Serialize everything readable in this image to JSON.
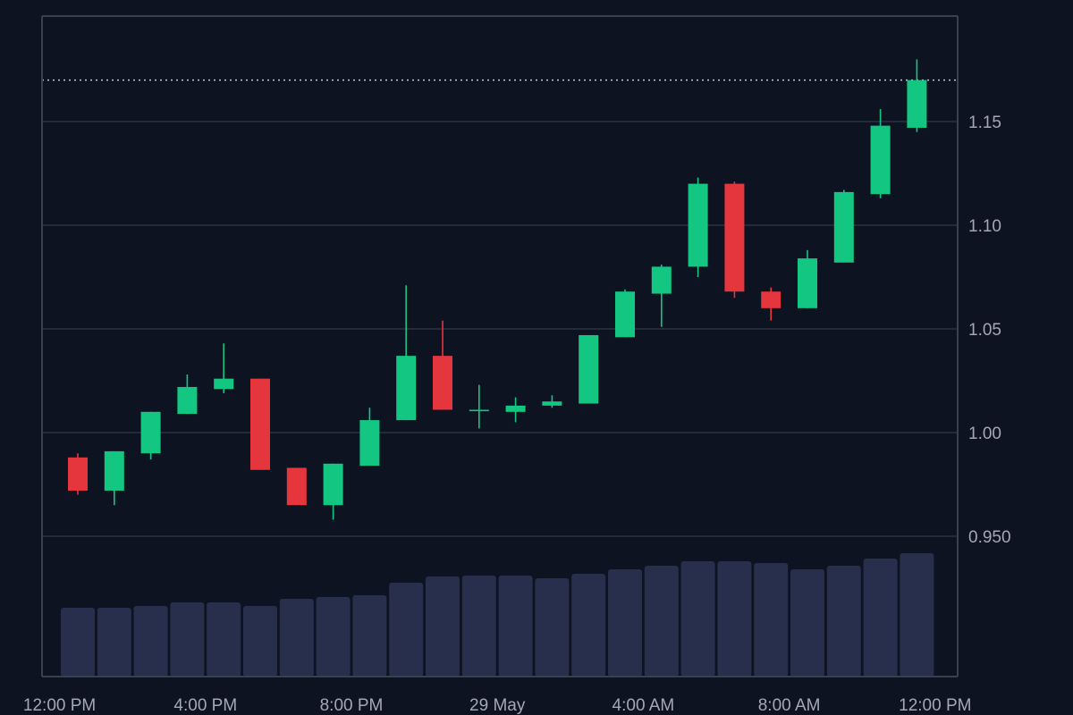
{
  "chart_data": {
    "type": "candlestick",
    "title": "",
    "xlabel": "",
    "ylabel": "",
    "ylim": [
      0.95,
      1.2
    ],
    "y_ticks": [
      {
        "value": 1.15,
        "label": "1.15"
      },
      {
        "value": 1.1,
        "label": "1.10"
      },
      {
        "value": 1.05,
        "label": "1.05"
      },
      {
        "value": 1.0,
        "label": "1.00"
      },
      {
        "value": 0.95,
        "label": "0.950"
      }
    ],
    "x_ticks": [
      {
        "index": -0.5,
        "label": "12:00 PM"
      },
      {
        "index": 3.5,
        "label": "4:00 PM"
      },
      {
        "index": 7.5,
        "label": "8:00 PM"
      },
      {
        "index": 11.5,
        "label": "29 May"
      },
      {
        "index": 15.5,
        "label": "4:00 AM"
      },
      {
        "index": 19.5,
        "label": "8:00 AM"
      },
      {
        "index": 23.5,
        "label": "12:00 PM"
      }
    ],
    "last_price": 1.17,
    "grid": true,
    "volume_shown": true,
    "candles": [
      {
        "open": 0.988,
        "high": 0.99,
        "low": 0.97,
        "close": 0.972,
        "volume": 77
      },
      {
        "open": 0.972,
        "high": 0.991,
        "low": 0.965,
        "close": 0.991,
        "volume": 77
      },
      {
        "open": 0.99,
        "high": 1.01,
        "low": 0.987,
        "close": 1.01,
        "volume": 79
      },
      {
        "open": 1.009,
        "high": 1.028,
        "low": 1.009,
        "close": 1.022,
        "volume": 83
      },
      {
        "open": 1.021,
        "high": 1.043,
        "low": 1.019,
        "close": 1.026,
        "volume": 83
      },
      {
        "open": 1.026,
        "high": 1.026,
        "low": 0.982,
        "close": 0.982,
        "volume": 79
      },
      {
        "open": 0.983,
        "high": 0.983,
        "low": 0.965,
        "close": 0.965,
        "volume": 87
      },
      {
        "open": 0.965,
        "high": 0.985,
        "low": 0.958,
        "close": 0.985,
        "volume": 89
      },
      {
        "open": 0.984,
        "high": 1.012,
        "low": 0.984,
        "close": 1.006,
        "volume": 91
      },
      {
        "open": 1.006,
        "high": 1.071,
        "low": 1.006,
        "close": 1.037,
        "volume": 105
      },
      {
        "open": 1.037,
        "high": 1.054,
        "low": 1.011,
        "close": 1.011,
        "volume": 112
      },
      {
        "open": 1.011,
        "high": 1.023,
        "low": 1.002,
        "close": 1.011,
        "volume": 113
      },
      {
        "open": 1.01,
        "high": 1.017,
        "low": 1.005,
        "close": 1.013,
        "volume": 113
      },
      {
        "open": 1.013,
        "high": 1.018,
        "low": 1.012,
        "close": 1.015,
        "volume": 110
      },
      {
        "open": 1.014,
        "high": 1.047,
        "low": 1.014,
        "close": 1.047,
        "volume": 115
      },
      {
        "open": 1.046,
        "high": 1.069,
        "low": 1.046,
        "close": 1.068,
        "volume": 120
      },
      {
        "open": 1.067,
        "high": 1.081,
        "low": 1.051,
        "close": 1.08,
        "volume": 124
      },
      {
        "open": 1.08,
        "high": 1.123,
        "low": 1.075,
        "close": 1.12,
        "volume": 129
      },
      {
        "open": 1.12,
        "high": 1.121,
        "low": 1.065,
        "close": 1.068,
        "volume": 129
      },
      {
        "open": 1.068,
        "high": 1.07,
        "low": 1.054,
        "close": 1.06,
        "volume": 127
      },
      {
        "open": 1.06,
        "high": 1.088,
        "low": 1.06,
        "close": 1.084,
        "volume": 120
      },
      {
        "open": 1.082,
        "high": 1.117,
        "low": 1.082,
        "close": 1.116,
        "volume": 124
      },
      {
        "open": 1.115,
        "high": 1.156,
        "low": 1.113,
        "close": 1.148,
        "volume": 132
      },
      {
        "open": 1.147,
        "high": 1.18,
        "low": 1.145,
        "close": 1.17,
        "volume": 138
      }
    ],
    "colors": {
      "background": "#0d1321",
      "up": "#13c783",
      "down": "#e5363e",
      "volume": "#272f4c",
      "grid": "#2b3242",
      "axis": "#394050",
      "text": "#a3a8b4",
      "price_line": "#c5c9d3"
    }
  }
}
